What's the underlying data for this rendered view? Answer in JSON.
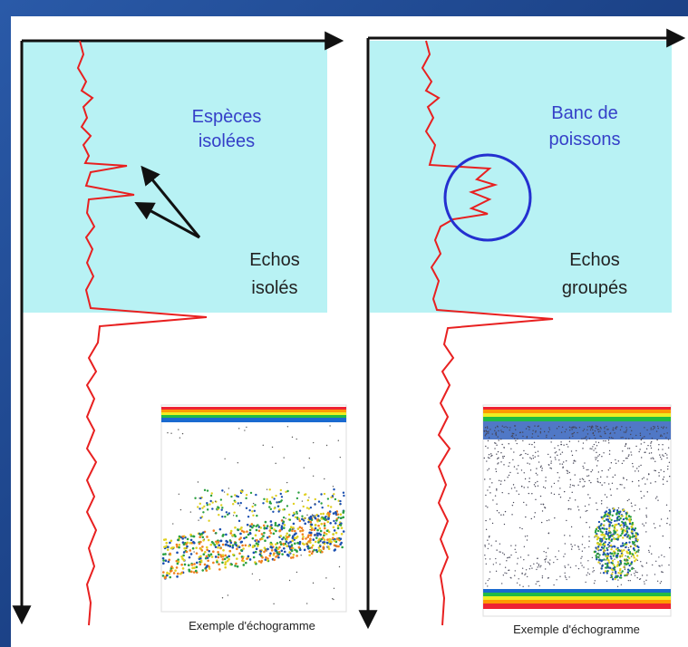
{
  "panels": [
    {
      "label_top": [
        "Espèces",
        "isolées"
      ],
      "label_bottom": [
        "Echos",
        "isolés"
      ],
      "caption": "Exemple d'échogramme"
    },
    {
      "label_top": [
        "Banc de",
        "poissons"
      ],
      "label_bottom": [
        "Echos",
        "groupés"
      ],
      "caption": "Exemple d'échogramme"
    }
  ]
}
